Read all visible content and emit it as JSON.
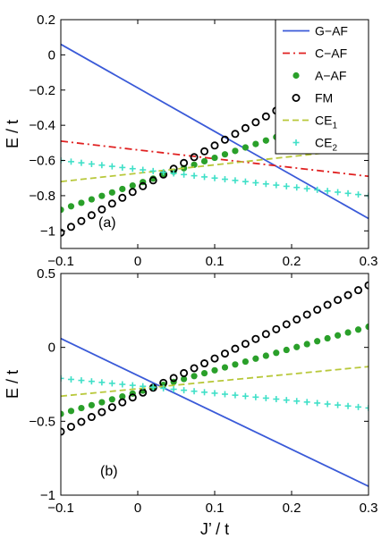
{
  "chart_data": [
    {
      "type": "line",
      "panel_label": "(a)",
      "xlabel": "",
      "ylabel": "E / t",
      "xlim": [
        -0.1,
        0.3
      ],
      "ylim": [
        -1.1,
        0.2
      ],
      "xticks": [
        -0.1,
        0,
        0.1,
        0.2,
        0.3
      ],
      "xtick_labels": [
        "−0.1",
        "0",
        "0.1",
        "0.2",
        "0.3"
      ],
      "yticks": [
        0.2,
        0,
        -0.2,
        -0.4,
        -0.6,
        -0.8,
        -1
      ],
      "ytick_labels": [
        "0.2",
        "0",
        "−0.2",
        "−0.4",
        "−0.6",
        "−0.8",
        "−1"
      ],
      "grid": false,
      "legend_position": "top-right",
      "series": [
        {
          "name": "G−AF",
          "style": "solid",
          "color": "#3a5ad8",
          "x": [
            -0.1,
            0.3
          ],
          "y": [
            0.06,
            -0.93
          ]
        },
        {
          "name": "C−AF",
          "style": "dashdot",
          "color": "#e02020",
          "x": [
            -0.1,
            0.3
          ],
          "y": [
            -0.49,
            -0.69
          ]
        },
        {
          "name": "A−AF",
          "style": "filled-circles",
          "color": "#2aa02a",
          "x": [
            -0.1,
            0.3
          ],
          "y": [
            -0.88,
            -0.29
          ]
        },
        {
          "name": "FM",
          "style": "open-circles",
          "color": "#000000",
          "x": [
            -0.1,
            0.3
          ],
          "y": [
            -1.01,
            -0.02
          ]
        },
        {
          "name": "CE",
          "name_subscript": "1",
          "style": "dashed",
          "color": "#b8c83a",
          "x": [
            -0.1,
            0.3
          ],
          "y": [
            -0.72,
            -0.53
          ]
        },
        {
          "name": "CE",
          "name_subscript": "2",
          "style": "plus",
          "color": "#40e0c8",
          "x": [
            -0.1,
            0.3
          ],
          "y": [
            -0.6,
            -0.8
          ]
        }
      ]
    },
    {
      "type": "line",
      "panel_label": "(b)",
      "xlabel": "J’ / t",
      "ylabel": "E / t",
      "xlim": [
        -0.1,
        0.3
      ],
      "ylim": [
        -1.0,
        0.5
      ],
      "xticks": [
        -0.1,
        0,
        0.1,
        0.2,
        0.3
      ],
      "xtick_labels": [
        "−0.1",
        "0",
        "0.1",
        "0.2",
        "0.3"
      ],
      "yticks": [
        0.5,
        0,
        -0.5,
        -1
      ],
      "ytick_labels": [
        "0.5",
        "0",
        "−0.5",
        "−1"
      ],
      "grid": false,
      "series": [
        {
          "name": "G−AF",
          "style": "solid",
          "color": "#3a5ad8",
          "x": [
            -0.1,
            0.3
          ],
          "y": [
            0.06,
            -0.94
          ]
        },
        {
          "name": "A−AF",
          "style": "filled-circles",
          "color": "#2aa02a",
          "x": [
            -0.1,
            0.3
          ],
          "y": [
            -0.45,
            0.14
          ]
        },
        {
          "name": "FM",
          "style": "open-circles",
          "color": "#000000",
          "x": [
            -0.1,
            0.3
          ],
          "y": [
            -0.57,
            0.42
          ]
        },
        {
          "name": "CE",
          "name_subscript": "1",
          "style": "dashed",
          "color": "#b8c83a",
          "x": [
            -0.1,
            0.3
          ],
          "y": [
            -0.33,
            -0.13
          ]
        },
        {
          "name": "CE",
          "name_subscript": "2",
          "style": "plus",
          "color": "#40e0c8",
          "x": [
            -0.1,
            0.3
          ],
          "y": [
            -0.21,
            -0.41
          ]
        }
      ]
    }
  ]
}
